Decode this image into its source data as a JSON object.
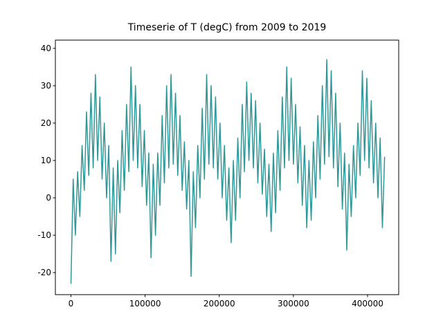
{
  "chart_data": {
    "type": "line",
    "title": "Timeserie of T (degC) from 2009 to 2019",
    "x": [
      0,
      3000,
      6000,
      9000,
      12000,
      15000,
      18000,
      21000,
      24000,
      27000,
      30000,
      33000,
      36000,
      39000,
      42000,
      45000,
      48000,
      51000,
      54000,
      57000,
      60000,
      63000,
      66000,
      69000,
      72000,
      75000,
      78000,
      81000,
      84000,
      87000,
      90000,
      93000,
      96000,
      99000,
      102000,
      105000,
      108000,
      111000,
      114000,
      117000,
      120000,
      123000,
      126000,
      129000,
      132000,
      135000,
      138000,
      141000,
      144000,
      147000,
      150000,
      153000,
      156000,
      159000,
      162000,
      165000,
      168000,
      171000,
      174000,
      177000,
      180000,
      183000,
      186000,
      189000,
      192000,
      195000,
      198000,
      201000,
      204000,
      207000,
      210000,
      213000,
      216000,
      219000,
      222000,
      225000,
      228000,
      231000,
      234000,
      237000,
      240000,
      243000,
      246000,
      249000,
      252000,
      255000,
      258000,
      261000,
      264000,
      267000,
      270000,
      273000,
      276000,
      279000,
      282000,
      285000,
      288000,
      291000,
      294000,
      297000,
      300000,
      303000,
      306000,
      309000,
      312000,
      315000,
      318000,
      321000,
      324000,
      327000,
      330000,
      333000,
      336000,
      339000,
      342000,
      345000,
      348000,
      351000,
      354000,
      357000,
      360000,
      363000,
      366000,
      369000,
      372000,
      375000,
      378000,
      381000,
      384000,
      387000,
      390000,
      393000,
      396000,
      399000,
      402000,
      405000,
      408000,
      411000,
      414000,
      417000,
      420000,
      423000
    ],
    "series": [
      {
        "color": "#2e9797",
        "values": [
          -23,
          5,
          -10,
          7,
          -5,
          14,
          2,
          23,
          6,
          28,
          8,
          33,
          10,
          27,
          5,
          20,
          0,
          14,
          -17,
          8,
          -15,
          10,
          -4,
          18,
          2,
          25,
          7,
          35,
          10,
          30,
          8,
          25,
          3,
          18,
          -2,
          12,
          -16,
          9,
          -10,
          12,
          -2,
          22,
          4,
          30,
          8,
          33,
          9,
          28,
          6,
          22,
          2,
          15,
          -3,
          10,
          -21,
          7,
          -8,
          14,
          0,
          24,
          5,
          33,
          9,
          30,
          8,
          27,
          5,
          20,
          0,
          14,
          -6,
          8,
          -12,
          10,
          -6,
          16,
          0,
          25,
          7,
          31,
          10,
          28,
          8,
          26,
          4,
          20,
          1,
          13,
          -5,
          9,
          -9,
          12,
          -4,
          18,
          2,
          27,
          8,
          35,
          10,
          32,
          9,
          25,
          4,
          19,
          -2,
          14,
          -8,
          10,
          -6,
          15,
          0,
          22,
          5,
          30,
          9,
          37,
          11,
          34,
          8,
          28,
          3,
          20,
          -3,
          12,
          -14,
          9,
          -5,
          14,
          0,
          20,
          6,
          34,
          10,
          32,
          8,
          26,
          4,
          20,
          0,
          16,
          -8,
          11
        ]
      }
    ],
    "xlim": [
      -21000,
      442000
    ],
    "ylim": [
      -25.9,
      42.2
    ],
    "xticks": [
      0,
      100000,
      200000,
      300000,
      400000
    ],
    "yticks": [
      -20,
      -10,
      0,
      10,
      20,
      30,
      40
    ]
  }
}
